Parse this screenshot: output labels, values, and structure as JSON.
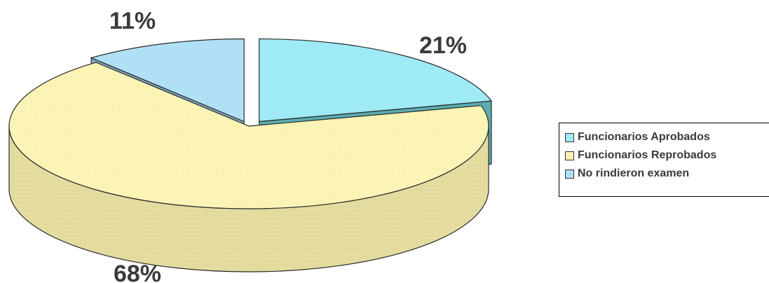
{
  "chart_data": {
    "type": "pie",
    "title": "",
    "slices": [
      {
        "label": "Funcionarios Aprobados",
        "value": 21,
        "display": "21%",
        "color": "#9eeaf5",
        "side_color": "#5fb5b8"
      },
      {
        "label": "Funcionarios Reprobados",
        "value": 68,
        "display": "68%",
        "color": "#fbf3b2",
        "side_color": "#e6dc9a"
      },
      {
        "label": "No rindieron examen",
        "value": 11,
        "display": "11%",
        "color": "#b0e0f5",
        "side_color": "#8cb6c9"
      }
    ],
    "legend_position": "right",
    "three_d": true
  }
}
